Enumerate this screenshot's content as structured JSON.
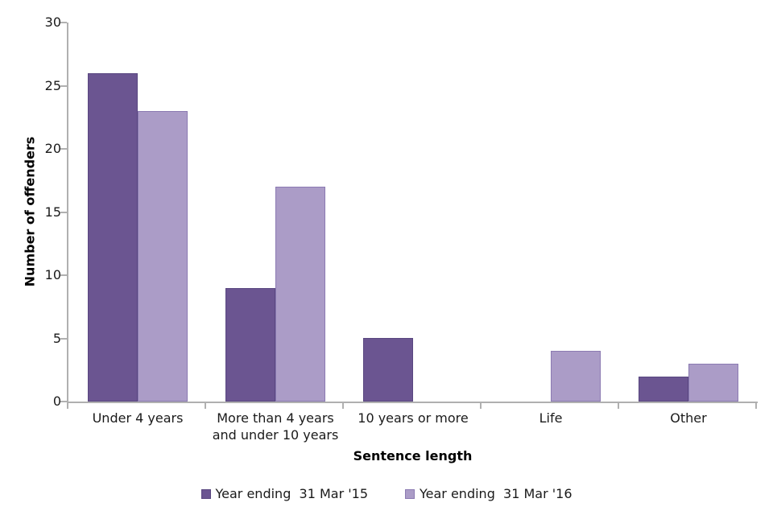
{
  "chart_data": {
    "type": "bar",
    "title": "",
    "xlabel": "Sentence length",
    "ylabel": "Number of offenders",
    "categories": [
      "Under 4 years",
      "More than 4 years\nand under 10 years",
      "10 years or more",
      "Life",
      "Other"
    ],
    "series": [
      {
        "name": "Year ending  31 Mar '15",
        "color": "#6b5591",
        "border_color": "#594780",
        "values": [
          26,
          9,
          5,
          0,
          2
        ]
      },
      {
        "name": "Year ending  31 Mar '16",
        "color": "#ab9cc7",
        "border_color": "#8b7ab2",
        "values": [
          23,
          17,
          0,
          4,
          3
        ]
      }
    ],
    "ylim": [
      0,
      30
    ],
    "yticks": [
      0,
      5,
      10,
      15,
      20,
      25,
      30
    ],
    "grid": false,
    "legend_position": "bottom",
    "axis_color": "#b0b0b0",
    "text_color": "#1a1a1a",
    "background_color": "#ffffff"
  }
}
